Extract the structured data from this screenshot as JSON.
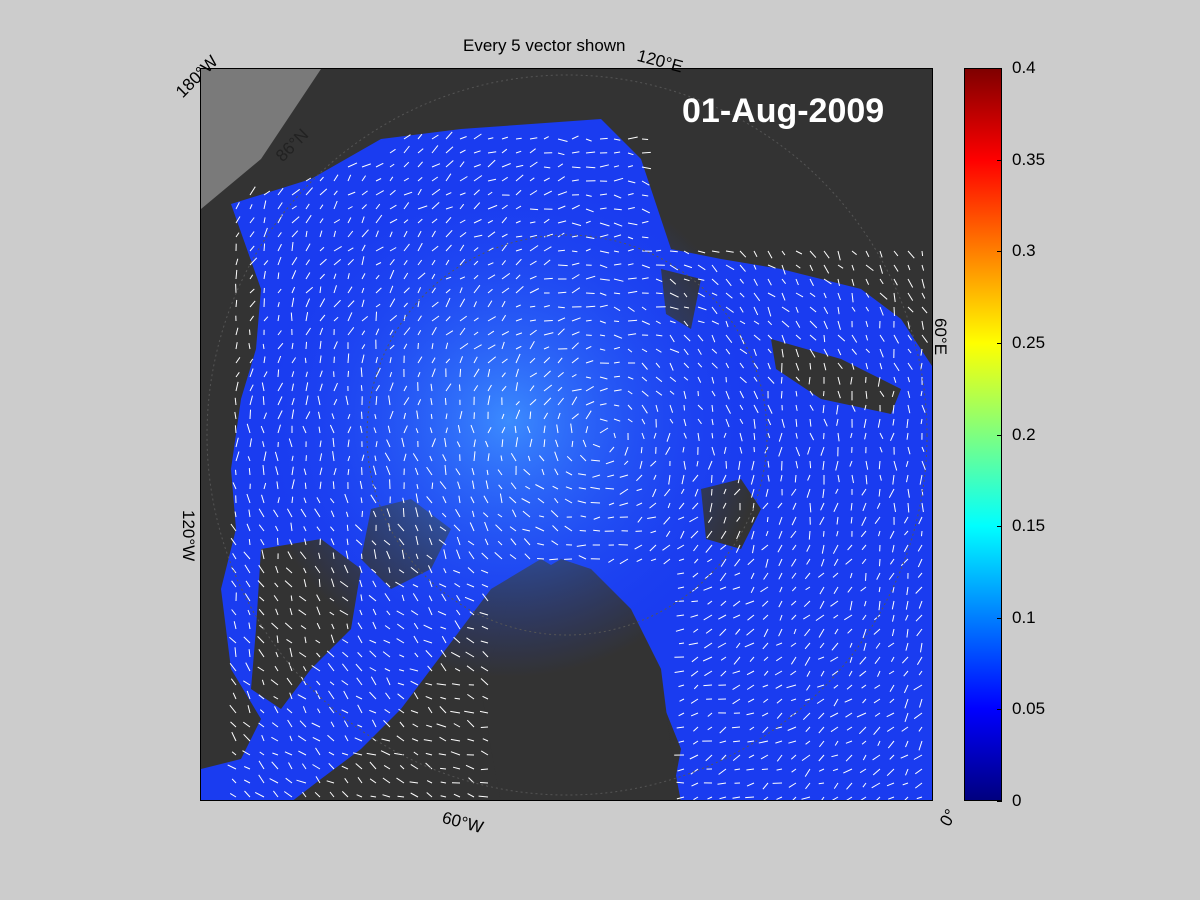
{
  "title": "Every 5 vector shown",
  "date": "01-Aug-2009",
  "map_labels": {
    "lon_180w": "180°W",
    "lon_120e": "120°E",
    "lon_60e": "60°E",
    "lon_120w": "120°W",
    "lon_60w": "60°W",
    "lon_0": "0°",
    "lat_86n": "86°N"
  },
  "colorbar": {
    "ticks": [
      "0",
      "0.05",
      "0.1",
      "0.15",
      "0.2",
      "0.25",
      "0.3",
      "0.35",
      "0.4"
    ],
    "min": 0,
    "max": 0.4,
    "colormap": "jet"
  },
  "colors": {
    "background": "#cccccc",
    "land": "#333333",
    "ice_ocean": "#1a3cf0",
    "vectors": "#ffffff"
  }
}
